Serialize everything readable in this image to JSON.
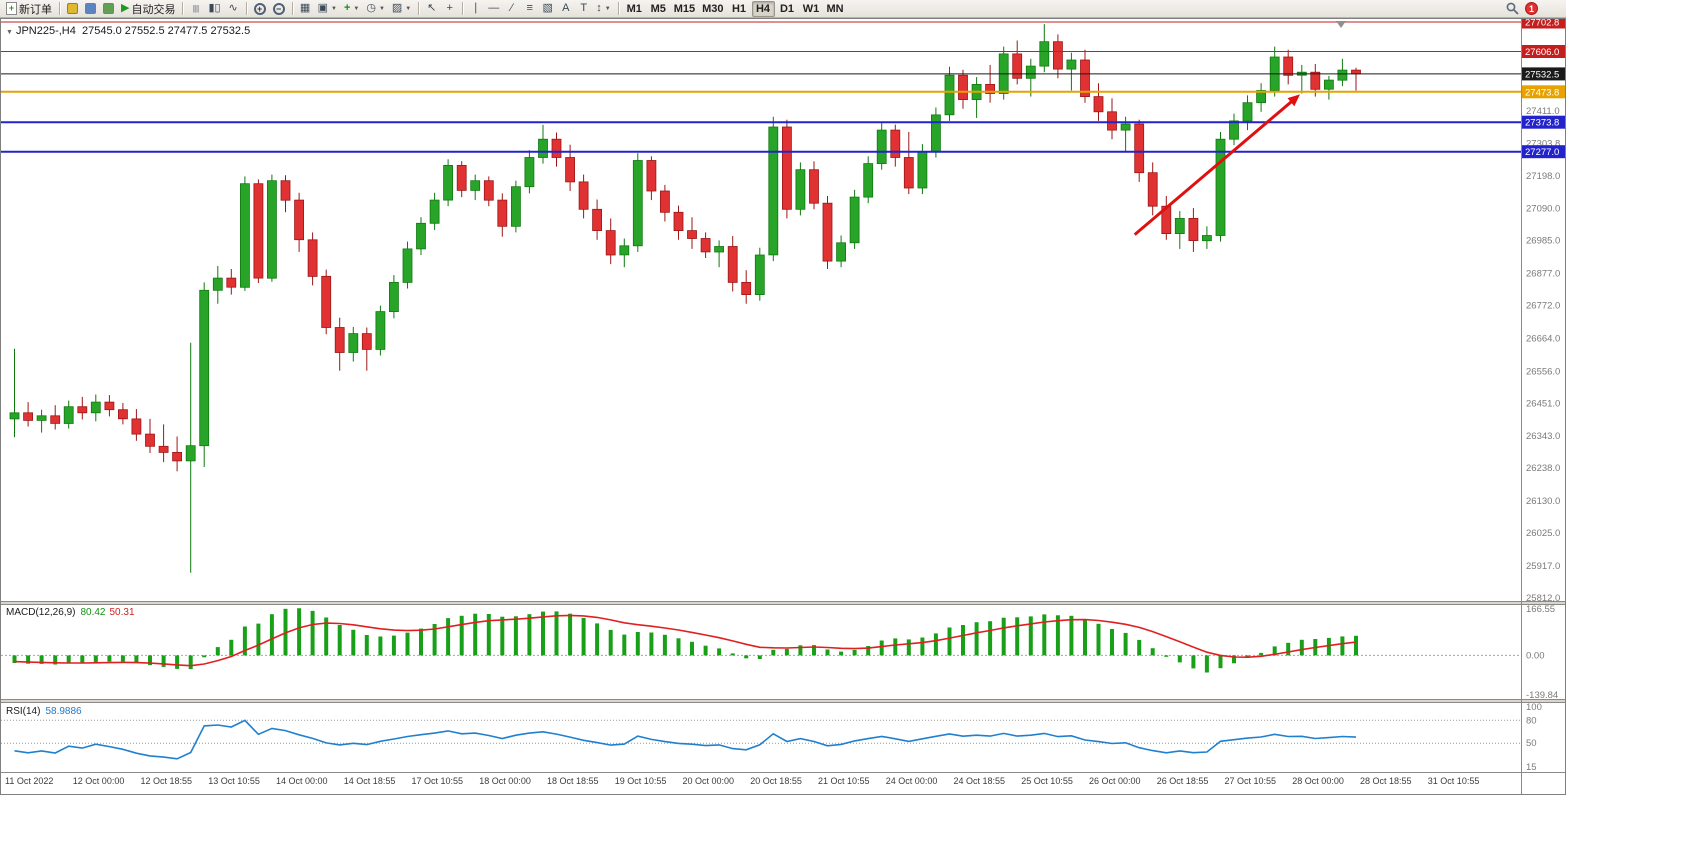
{
  "toolbar": {
    "notification_count": "1",
    "items": [
      {
        "name": "new-order-button",
        "icon": "new-order-icon",
        "doc": true,
        "label": "新订单"
      },
      {
        "sep": true
      },
      {
        "name": "market-watch-button",
        "icon": "market-watch-icon",
        "swatch": "#e0b830"
      },
      {
        "name": "navigator-button",
        "icon": "navigator-icon",
        "swatch": "#5b84c4"
      },
      {
        "name": "terminal-button",
        "icon": "terminal-icon",
        "swatch": "#5fa054"
      },
      {
        "name": "auto-trading-button",
        "icon": "auto-trading-icon",
        "glyph": "▶",
        "glyph_color": "#1c9c1c",
        "label": "自动交易"
      },
      {
        "sep": true
      },
      {
        "name": "bar-chart-button",
        "icon": "bar-chart-icon",
        "glyph": "|||"
      },
      {
        "name": "candlestick-chart-button",
        "icon": "candlestick-icon",
        "glyph": "▮▯"
      },
      {
        "name": "line-chart-button",
        "icon": "line-chart-icon",
        "glyph": "∿"
      },
      {
        "sep": true
      },
      {
        "name": "zoom-in-button",
        "icon": "zoom-in-icon",
        "lens": "+"
      },
      {
        "name": "zoom-out-button",
        "icon": "zoom-out-icon",
        "lens": "−"
      },
      {
        "sep": true
      },
      {
        "name": "tile-windows-button",
        "icon": "tile-windows-icon",
        "glyph": "▦"
      },
      {
        "name": "cascade-windows-button",
        "icon": "cascade-windows-icon",
        "glyph": "▣",
        "dropdown": true
      },
      {
        "name": "add-indicator-button",
        "icon": "add-indicator-icon",
        "glyph": "+",
        "glyph_color": "#159015",
        "bold": true,
        "dropdown": true
      },
      {
        "name": "periods-button",
        "icon": "clock-icon",
        "glyph": "◷",
        "dropdown": true
      },
      {
        "name": "templates-button",
        "icon": "template-icon",
        "glyph": "▨",
        "dropdown": true
      },
      {
        "sep": true
      },
      {
        "name": "cursor-button",
        "icon": "cursor-icon",
        "glyph": "↖"
      },
      {
        "name": "crosshair-button",
        "icon": "crosshair-icon",
        "glyph": "+"
      },
      {
        "sep": true
      },
      {
        "name": "vertical-line-button",
        "icon": "vertical-line-icon",
        "glyph": "∣"
      },
      {
        "name": "horizontal-line-button",
        "icon": "horizontal-line-icon",
        "glyph": "―"
      },
      {
        "name": "trendline-button",
        "icon": "trendline-icon",
        "glyph": "∕"
      },
      {
        "name": "fibonacci-button",
        "icon": "fibonacci-icon",
        "glyph": "≡"
      },
      {
        "name": "shapes-button",
        "icon": "shapes-icon",
        "glyph": "▧"
      },
      {
        "name": "text-button",
        "icon": "text-icon",
        "glyph": "A"
      },
      {
        "name": "text-label-button",
        "icon": "text-label-icon",
        "glyph": "T"
      },
      {
        "name": "arrow-objects-button",
        "icon": "arrow-objects-icon",
        "glyph": "↕",
        "dropdown": true
      },
      {
        "sep": true
      },
      {
        "name": "timeframe-m1-button",
        "tf": true,
        "label": "M1"
      },
      {
        "name": "timeframe-m5-button",
        "tf": true,
        "label": "M5"
      },
      {
        "name": "timeframe-m15-button",
        "tf": true,
        "label": "M15"
      },
      {
        "name": "timeframe-m30-button",
        "tf": true,
        "label": "M30"
      },
      {
        "name": "timeframe-h1-button",
        "tf": true,
        "label": "H1"
      },
      {
        "name": "timeframe-h4-button",
        "tf": true,
        "label": "H4",
        "active": true
      },
      {
        "name": "timeframe-d1-button",
        "tf": true,
        "label": "D1"
      },
      {
        "name": "timeframe-w1-button",
        "tf": true,
        "label": "W1"
      },
      {
        "name": "timeframe-mn-button",
        "tf": true,
        "label": "MN"
      }
    ]
  },
  "chart": {
    "symbol_period": "JPN225-,H4",
    "ohlc": "27545.0 27552.5 27477.5 27532.5"
  },
  "macd": {
    "label": "MACD(12,26,9)",
    "value_main": "80.42",
    "value_signal": "50.31",
    "scale": [
      "166.55",
      "0.00",
      "-139.84"
    ]
  },
  "rsi": {
    "label": "RSI(14)",
    "value": "58.9886",
    "scale": [
      "100",
      "80",
      "50",
      "15"
    ]
  },
  "chart_data": {
    "type": "candlestick",
    "symbol": "JPN225-",
    "period": "H4",
    "title": "JPN225-,H4 27545.0 27552.5 27477.5 27532.5",
    "ylim": [
      25812.0,
      27702.8
    ],
    "y_ticks": [
      "27411.0",
      "27303.8",
      "27198.0",
      "27090.0",
      "26985.0",
      "26877.0",
      "26772.0",
      "26664.0",
      "26556.0",
      "26451.0",
      "26343.0",
      "26238.0",
      "26130.0",
      "26025.0",
      "25917.0",
      "25812.0"
    ],
    "levels": [
      {
        "price": 27702.8,
        "label": "27702.8",
        "color": "#c41e1e",
        "width": 1
      },
      {
        "price": 27606.0,
        "label": "27606.0",
        "color": "#c41e1e",
        "width": 1
      },
      {
        "price": 27532.5,
        "label": "27532.5",
        "color": "#1a1a1a",
        "width": 1
      },
      {
        "price": 27473.8,
        "label": "27473.8",
        "color": "#e8a200",
        "width": 2
      },
      {
        "price": 27373.8,
        "label": "27373.8",
        "color": "#2323cc",
        "width": 2
      },
      {
        "price": 27277.0,
        "label": "27277.0",
        "color": "#2323cc",
        "width": 2
      }
    ],
    "time_labels": [
      "11 Oct 2022",
      "12 Oct 00:00",
      "12 Oct 18:55",
      "13 Oct 10:55",
      "14 Oct 00:00",
      "14 Oct 18:55",
      "17 Oct 10:55",
      "18 Oct 00:00",
      "18 Oct 18:55",
      "19 Oct 10:55",
      "20 Oct 00:00",
      "20 Oct 18:55",
      "21 Oct 10:55",
      "24 Oct 00:00",
      "24 Oct 18:55",
      "25 Oct 10:55",
      "26 Oct 00:00",
      "26 Oct 18:55",
      "27 Oct 10:55",
      "28 Oct 00:00",
      "28 Oct 18:55",
      "31 Oct 10:55"
    ],
    "bars_per_label": 5,
    "up_color": "#28a428",
    "down_color": "#e03232",
    "candles": [
      [
        26400,
        26630,
        26340,
        26420
      ],
      [
        26420,
        26455,
        26375,
        26395
      ],
      [
        26395,
        26430,
        26355,
        26410
      ],
      [
        26410,
        26445,
        26365,
        26385
      ],
      [
        26385,
        26460,
        26368,
        26440
      ],
      [
        26440,
        26472,
        26398,
        26420
      ],
      [
        26420,
        26480,
        26392,
        26455
      ],
      [
        26455,
        26478,
        26408,
        26430
      ],
      [
        26430,
        26452,
        26382,
        26400
      ],
      [
        26400,
        26432,
        26328,
        26350
      ],
      [
        26350,
        26400,
        26288,
        26310
      ],
      [
        26310,
        26382,
        26258,
        26290
      ],
      [
        26290,
        26342,
        26228,
        26262
      ],
      [
        26262,
        26650,
        25895,
        26312
      ],
      [
        26312,
        26848,
        26242,
        26822
      ],
      [
        26822,
        26902,
        26778,
        26862
      ],
      [
        26862,
        26892,
        26808,
        26832
      ],
      [
        26832,
        27196,
        26820,
        27172
      ],
      [
        27172,
        27186,
        26846,
        26862
      ],
      [
        26862,
        27202,
        26850,
        27182
      ],
      [
        27182,
        27200,
        27078,
        27118
      ],
      [
        27118,
        27142,
        26948,
        26988
      ],
      [
        26988,
        27012,
        26838,
        26868
      ],
      [
        26868,
        26890,
        26678,
        26700
      ],
      [
        26700,
        26732,
        26558,
        26618
      ],
      [
        26618,
        26702,
        26588,
        26680
      ],
      [
        26680,
        26700,
        26558,
        26628
      ],
      [
        26628,
        26772,
        26608,
        26752
      ],
      [
        26752,
        26872,
        26730,
        26848
      ],
      [
        26848,
        26982,
        26828,
        26958
      ],
      [
        26958,
        27062,
        26938,
        27042
      ],
      [
        27042,
        27142,
        27020,
        27118
      ],
      [
        27118,
        27252,
        27098,
        27232
      ],
      [
        27232,
        27246,
        27128,
        27150
      ],
      [
        27150,
        27202,
        27118,
        27182
      ],
      [
        27182,
        27196,
        27098,
        27118
      ],
      [
        27118,
        27140,
        26998,
        27032
      ],
      [
        27032,
        27182,
        27012,
        27162
      ],
      [
        27162,
        27282,
        27140,
        27258
      ],
      [
        27258,
        27365,
        27238,
        27318
      ],
      [
        27318,
        27340,
        27228,
        27258
      ],
      [
        27258,
        27300,
        27148,
        27178
      ],
      [
        27178,
        27202,
        27058,
        27088
      ],
      [
        27088,
        27120,
        26988,
        27018
      ],
      [
        27018,
        27058,
        26908,
        26938
      ],
      [
        26938,
        26992,
        26898,
        26968
      ],
      [
        26968,
        27272,
        26948,
        27248
      ],
      [
        27248,
        27262,
        27118,
        27148
      ],
      [
        27148,
        27168,
        27048,
        27078
      ],
      [
        27078,
        27100,
        26988,
        27018
      ],
      [
        27018,
        27062,
        26958,
        26992
      ],
      [
        26992,
        27012,
        26928,
        26948
      ],
      [
        26948,
        26986,
        26898,
        26966
      ],
      [
        26966,
        27000,
        26818,
        26848
      ],
      [
        26848,
        26888,
        26778,
        26808
      ],
      [
        26808,
        26962,
        26788,
        26938
      ],
      [
        26938,
        27392,
        26918,
        27358
      ],
      [
        27358,
        27382,
        27058,
        27088
      ],
      [
        27088,
        27242,
        27068,
        27218
      ],
      [
        27218,
        27246,
        27088,
        27108
      ],
      [
        27108,
        27132,
        26892,
        26918
      ],
      [
        26918,
        27002,
        26898,
        26978
      ],
      [
        26978,
        27152,
        26958,
        27128
      ],
      [
        27128,
        27262,
        27108,
        27238
      ],
      [
        27238,
        27372,
        27218,
        27348
      ],
      [
        27348,
        27366,
        27228,
        27258
      ],
      [
        27258,
        27342,
        27138,
        27158
      ],
      [
        27158,
        27302,
        27138,
        27278
      ],
      [
        27278,
        27422,
        27258,
        27398
      ],
      [
        27398,
        27556,
        27378,
        27528
      ],
      [
        27528,
        27546,
        27418,
        27448
      ],
      [
        27448,
        27522,
        27388,
        27498
      ],
      [
        27498,
        27562,
        27438,
        27468
      ],
      [
        27468,
        27622,
        27448,
        27598
      ],
      [
        27598,
        27642,
        27498,
        27518
      ],
      [
        27518,
        27582,
        27458,
        27558
      ],
      [
        27558,
        27696,
        27538,
        27638
      ],
      [
        27638,
        27662,
        27518,
        27548
      ],
      [
        27548,
        27602,
        27478,
        27578
      ],
      [
        27578,
        27612,
        27438,
        27458
      ],
      [
        27458,
        27502,
        27378,
        27408
      ],
      [
        27408,
        27452,
        27318,
        27348
      ],
      [
        27348,
        27392,
        27278,
        27368
      ],
      [
        27368,
        27382,
        27178,
        27208
      ],
      [
        27208,
        27242,
        27068,
        27098
      ],
      [
        27098,
        27132,
        26988,
        27008
      ],
      [
        27008,
        27082,
        26958,
        27058
      ],
      [
        27058,
        27092,
        26948,
        26985
      ],
      [
        26985,
        27032,
        26958,
        27002
      ],
      [
        27002,
        27342,
        26982,
        27318
      ],
      [
        27318,
        27402,
        27298,
        27378
      ],
      [
        27378,
        27462,
        27348,
        27438
      ],
      [
        27438,
        27502,
        27408,
        27478
      ],
      [
        27478,
        27622,
        27458,
        27588
      ],
      [
        27588,
        27612,
        27498,
        27528
      ],
      [
        27528,
        27562,
        27468,
        27538
      ],
      [
        27538,
        27565,
        27458,
        27482
      ],
      [
        27482,
        27526,
        27448,
        27512
      ],
      [
        27512,
        27582,
        27492,
        27545
      ],
      [
        27545,
        27552.5,
        27477.5,
        27532.5
      ]
    ],
    "trend_arrow": {
      "from_bar": 83,
      "from_price": 27005,
      "to_bar": 95.2,
      "to_price": 27465,
      "color": "#e01010"
    },
    "indicators": {
      "macd": {
        "params": [
          12,
          26,
          9
        ],
        "current_main": 80.42,
        "current_signal": 50.31,
        "range": [
          -139.84,
          166.55
        ],
        "histogram_color": "#19a019",
        "signal_color": "#e02020"
      },
      "rsi": {
        "period": 14,
        "current": 58.9886,
        "range": [
          15,
          100
        ],
        "levels": [
          80,
          50
        ],
        "color": "#2080d0"
      }
    }
  }
}
